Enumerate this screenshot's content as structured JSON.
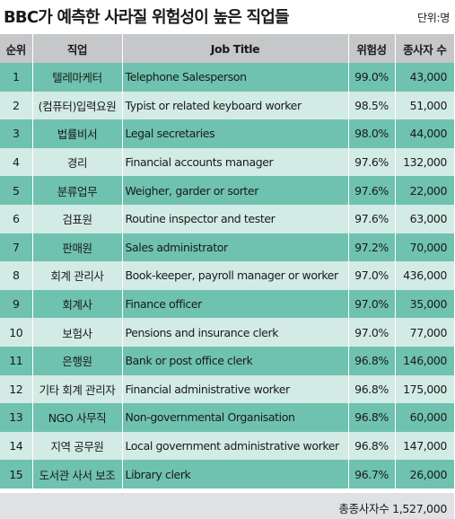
{
  "title": "BBC가 예측한 사라질 위험성이 높은 직업들",
  "unit": "단위:명",
  "columns": [
    "순위",
    "직업",
    "Job Title",
    "위험성",
    "종사자 수"
  ],
  "rows": [
    {
      "rank": "1",
      "job_kr": "텔레마케터",
      "job_en": "Telephone Salesperson",
      "risk": "99.0%",
      "workers": "43,000"
    },
    {
      "rank": "2",
      "job_kr": "(컴퓨터)입력요원",
      "job_en": "Typist or related keyboard worker",
      "risk": "98.5%",
      "workers": "51,000"
    },
    {
      "rank": "3",
      "job_kr": "법률비서",
      "job_en": "Legal secretaries",
      "risk": "98.0%",
      "workers": "44,000"
    },
    {
      "rank": "4",
      "job_kr": "경리",
      "job_en": "Financial accounts manager",
      "risk": "97.6%",
      "workers": "132,000"
    },
    {
      "rank": "5",
      "job_kr": "분류업무",
      "job_en": "Weigher, garder or sorter",
      "risk": "97.6%",
      "workers": "22,000"
    },
    {
      "rank": "6",
      "job_kr": "검표원",
      "job_en": "Routine inspector and tester",
      "risk": "97.6%",
      "workers": "63,000"
    },
    {
      "rank": "7",
      "job_kr": "판매원",
      "job_en": "Sales administrator",
      "risk": "97.2%",
      "workers": "70,000"
    },
    {
      "rank": "8",
      "job_kr": "회계 관리사",
      "job_en": "Book-keeper, payroll manager or worker",
      "risk": "97.0%",
      "workers": "436,000"
    },
    {
      "rank": "9",
      "job_kr": "회계사",
      "job_en": "Finance officer",
      "risk": "97.0%",
      "workers": "35,000"
    },
    {
      "rank": "10",
      "job_kr": "보험사",
      "job_en": "Pensions and insurance clerk",
      "risk": "97.0%",
      "workers": "77,000"
    },
    {
      "rank": "11",
      "job_kr": "은행원",
      "job_en": "Bank or post office clerk",
      "risk": "96.8%",
      "workers": "146,000"
    },
    {
      "rank": "12",
      "job_kr": "기타 회계 관리자",
      "job_en": "Financial administrative worker",
      "risk": "96.8%",
      "workers": "175,000"
    },
    {
      "rank": "13",
      "job_kr": "NGO 사무직",
      "job_en": "Non-governmental Organisation",
      "risk": "96.8%",
      "workers": "60,000"
    },
    {
      "rank": "14",
      "job_kr": "지역 공무원",
      "job_en": "Local government administrative worker",
      "risk": "96.8%",
      "workers": "147,000"
    },
    {
      "rank": "15",
      "job_kr": "도서관 사서 보조",
      "job_en": "Library clerk",
      "risk": "96.7%",
      "workers": "26,000"
    }
  ],
  "total": "총종사자수 1,527,000",
  "colors": {
    "header_bg": "#c5c7c9",
    "row_dark": "#6fc2af",
    "row_light": "#d3ebe5",
    "footer_bg": "#dfe1e3"
  }
}
